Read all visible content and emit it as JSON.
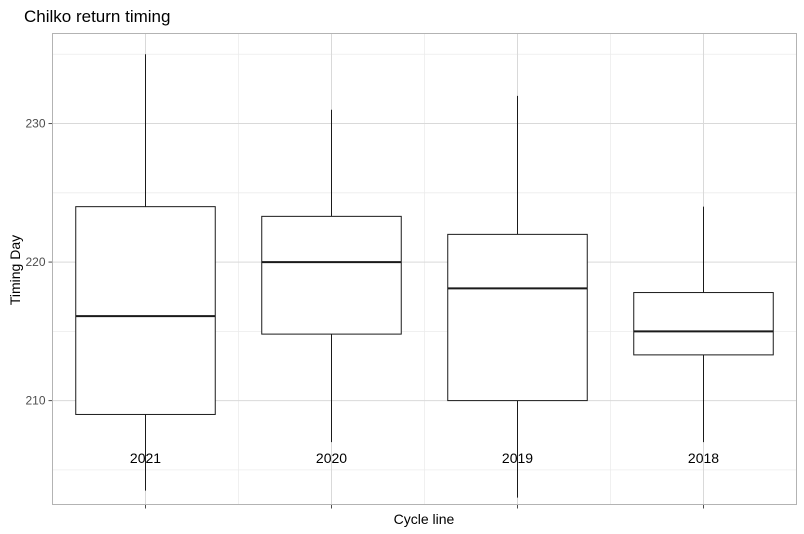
{
  "chart_data": {
    "type": "boxplot",
    "title": "Chilko return timing",
    "xlabel": "Cycle line",
    "ylabel": "Timing Day",
    "ylim": [
      202.5,
      236.5
    ],
    "y_ticks": [
      210,
      220,
      230
    ],
    "grid": true,
    "categories": [
      "2021",
      "2020",
      "2019",
      "2018"
    ],
    "boxes": [
      {
        "label": "2021",
        "min": 203.5,
        "q1": 209,
        "median": 216.1,
        "q3": 224,
        "max": 235
      },
      {
        "label": "2020",
        "min": 207,
        "q1": 214.8,
        "median": 220,
        "q3": 223.3,
        "max": 231
      },
      {
        "label": "2019",
        "min": 203,
        "q1": 210,
        "median": 218.1,
        "q3": 222,
        "max": 232
      },
      {
        "label": "2018",
        "min": 207,
        "q1": 213.3,
        "median": 215,
        "q3": 217.8,
        "max": 224
      }
    ]
  }
}
